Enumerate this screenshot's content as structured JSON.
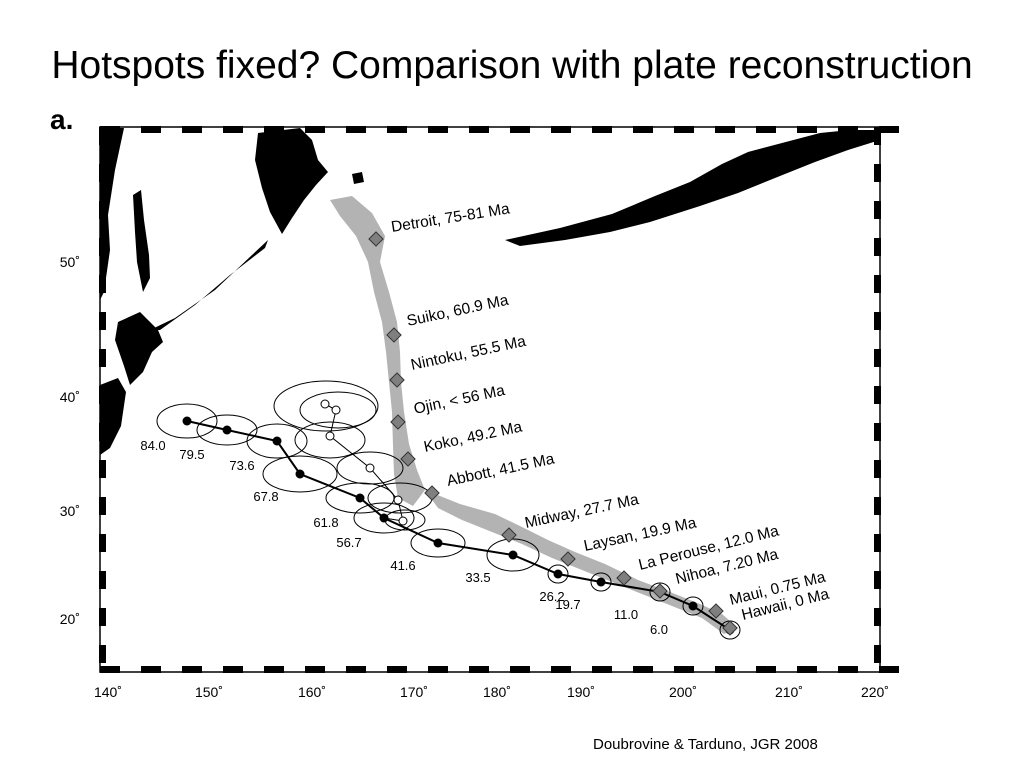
{
  "title": "Hotspots fixed? Comparison with plate reconstruction",
  "panel_label": "a.",
  "credit": "Doubrovine & Tarduno, JGR 2008",
  "colors": {
    "land": "#000000",
    "seamount_chain": "#b3b3b3",
    "site_marker": "#7f7f7f",
    "track": "#000000"
  },
  "map": {
    "x_ticks": [
      "140˚",
      "150˚",
      "160˚",
      "170˚",
      "180˚",
      "190˚",
      "200˚",
      "210˚",
      "220˚"
    ],
    "y_ticks": [
      "20˚",
      "30˚",
      "40˚",
      "50˚"
    ]
  },
  "sites": [
    {
      "name": "Detroit, 75-81 Ma"
    },
    {
      "name": "Suiko, 60.9 Ma"
    },
    {
      "name": "Nintoku, 55.5 Ma"
    },
    {
      "name": "Ojin, < 56 Ma"
    },
    {
      "name": "Koko, 49.2 Ma"
    },
    {
      "name": "Abbott, 41.5 Ma"
    },
    {
      "name": "Midway, 27.7 Ma"
    },
    {
      "name": "Laysan, 19.9 Ma"
    },
    {
      "name": "La Perouse, 12.0 Ma"
    },
    {
      "name": "Nihoa, 7.20 Ma"
    },
    {
      "name": "Maui, 0.75 Ma"
    },
    {
      "name": "Hawaii, 0 Ma"
    }
  ],
  "track_ages": [
    "84.0",
    "79.5",
    "73.6",
    "67.8",
    "61.8",
    "56.7",
    "41.6",
    "33.5",
    "26.2",
    "19.7",
    "11.0",
    "6.0"
  ]
}
